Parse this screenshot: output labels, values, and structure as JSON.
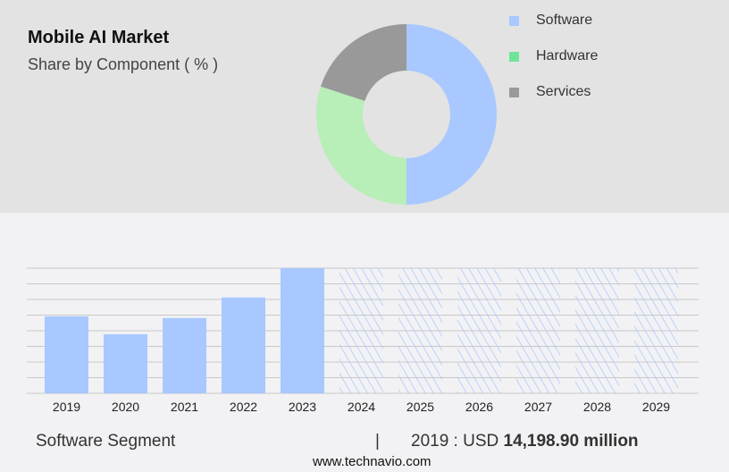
{
  "header": {
    "title": "Mobile AI Market",
    "subtitle": "Share by Component ( % )"
  },
  "footer": {
    "segment": "Software Segment",
    "separator": "|",
    "value_prefix": "2019 : USD ",
    "value_bold": "14,198.90 million",
    "site": "www.technavio.com"
  },
  "chart_data": [
    {
      "type": "pie",
      "title": "Share by Component ( % )",
      "donut": true,
      "labels": [
        "Software",
        "Hardware",
        "Services"
      ],
      "values": [
        50,
        30,
        20
      ],
      "colors": [
        "#a8c8ff",
        "#b8eeb8",
        "#999999"
      ],
      "legend_colors": [
        "#a8c8ff",
        "#70e39a",
        "#999999"
      ],
      "legend": "right"
    },
    {
      "type": "bar",
      "title": "Software Segment",
      "xlabel": "",
      "ylabel": "USD million",
      "categories": [
        "2019",
        "2020",
        "2021",
        "2022",
        "2023",
        "2024",
        "2025",
        "2026",
        "2027",
        "2028",
        "2029"
      ],
      "values": [
        14198.9,
        10900,
        13900,
        17700,
        23100,
        null,
        null,
        null,
        null,
        null,
        null
      ],
      "forecast": [
        false,
        false,
        false,
        false,
        false,
        true,
        true,
        true,
        true,
        true,
        true
      ],
      "ylim": [
        0,
        23100
      ],
      "grid": true,
      "color": "#a8c8ff"
    }
  ]
}
